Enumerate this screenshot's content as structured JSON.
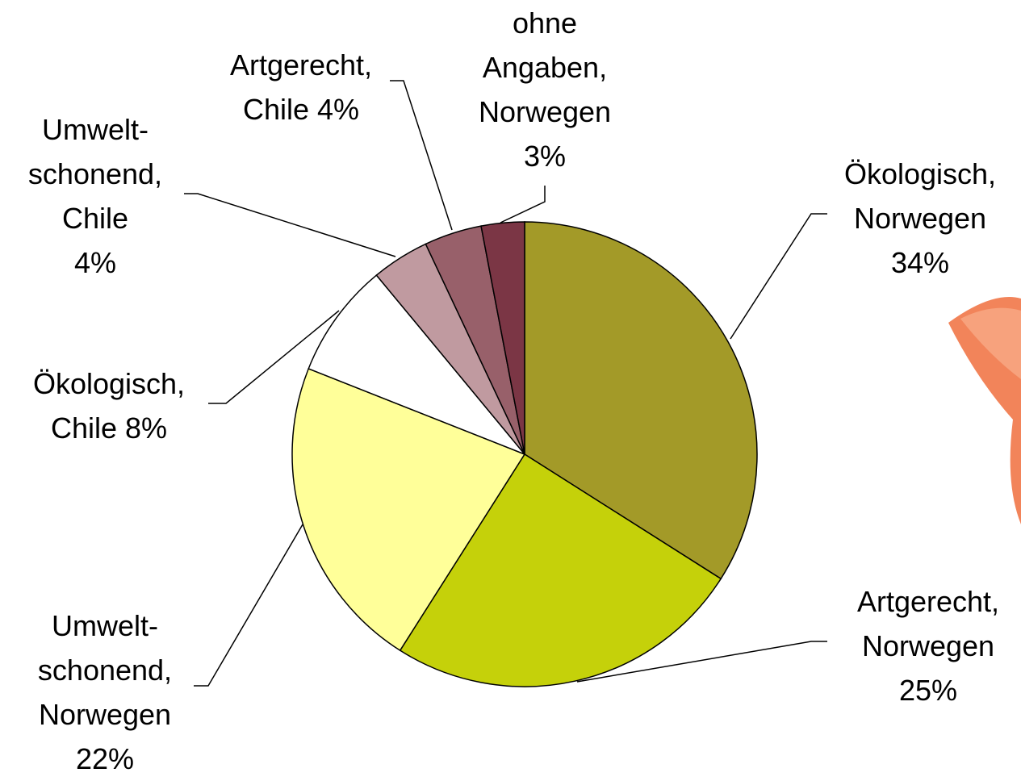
{
  "chart_data": {
    "type": "pie",
    "categories": [
      "Ökologisch, Norwegen",
      "Artgerecht, Norwegen",
      "Umwelt-schonend, Norwegen",
      "Ökologisch, Chile",
      "Umwelt-schonend, Chile",
      "Artgerecht, Chile",
      "ohne Angaben, Norwegen"
    ],
    "values": [
      34,
      25,
      22,
      8,
      4,
      4,
      3
    ],
    "value_labels": [
      "34%",
      "25%",
      "22%",
      "8%",
      "4%",
      "4%",
      "3%"
    ],
    "colors": [
      "#a39a28",
      "#c5d10a",
      "#ffff99",
      "#ffffff",
      "#c09aa0",
      "#98606a",
      "#7b3645"
    ]
  }
}
